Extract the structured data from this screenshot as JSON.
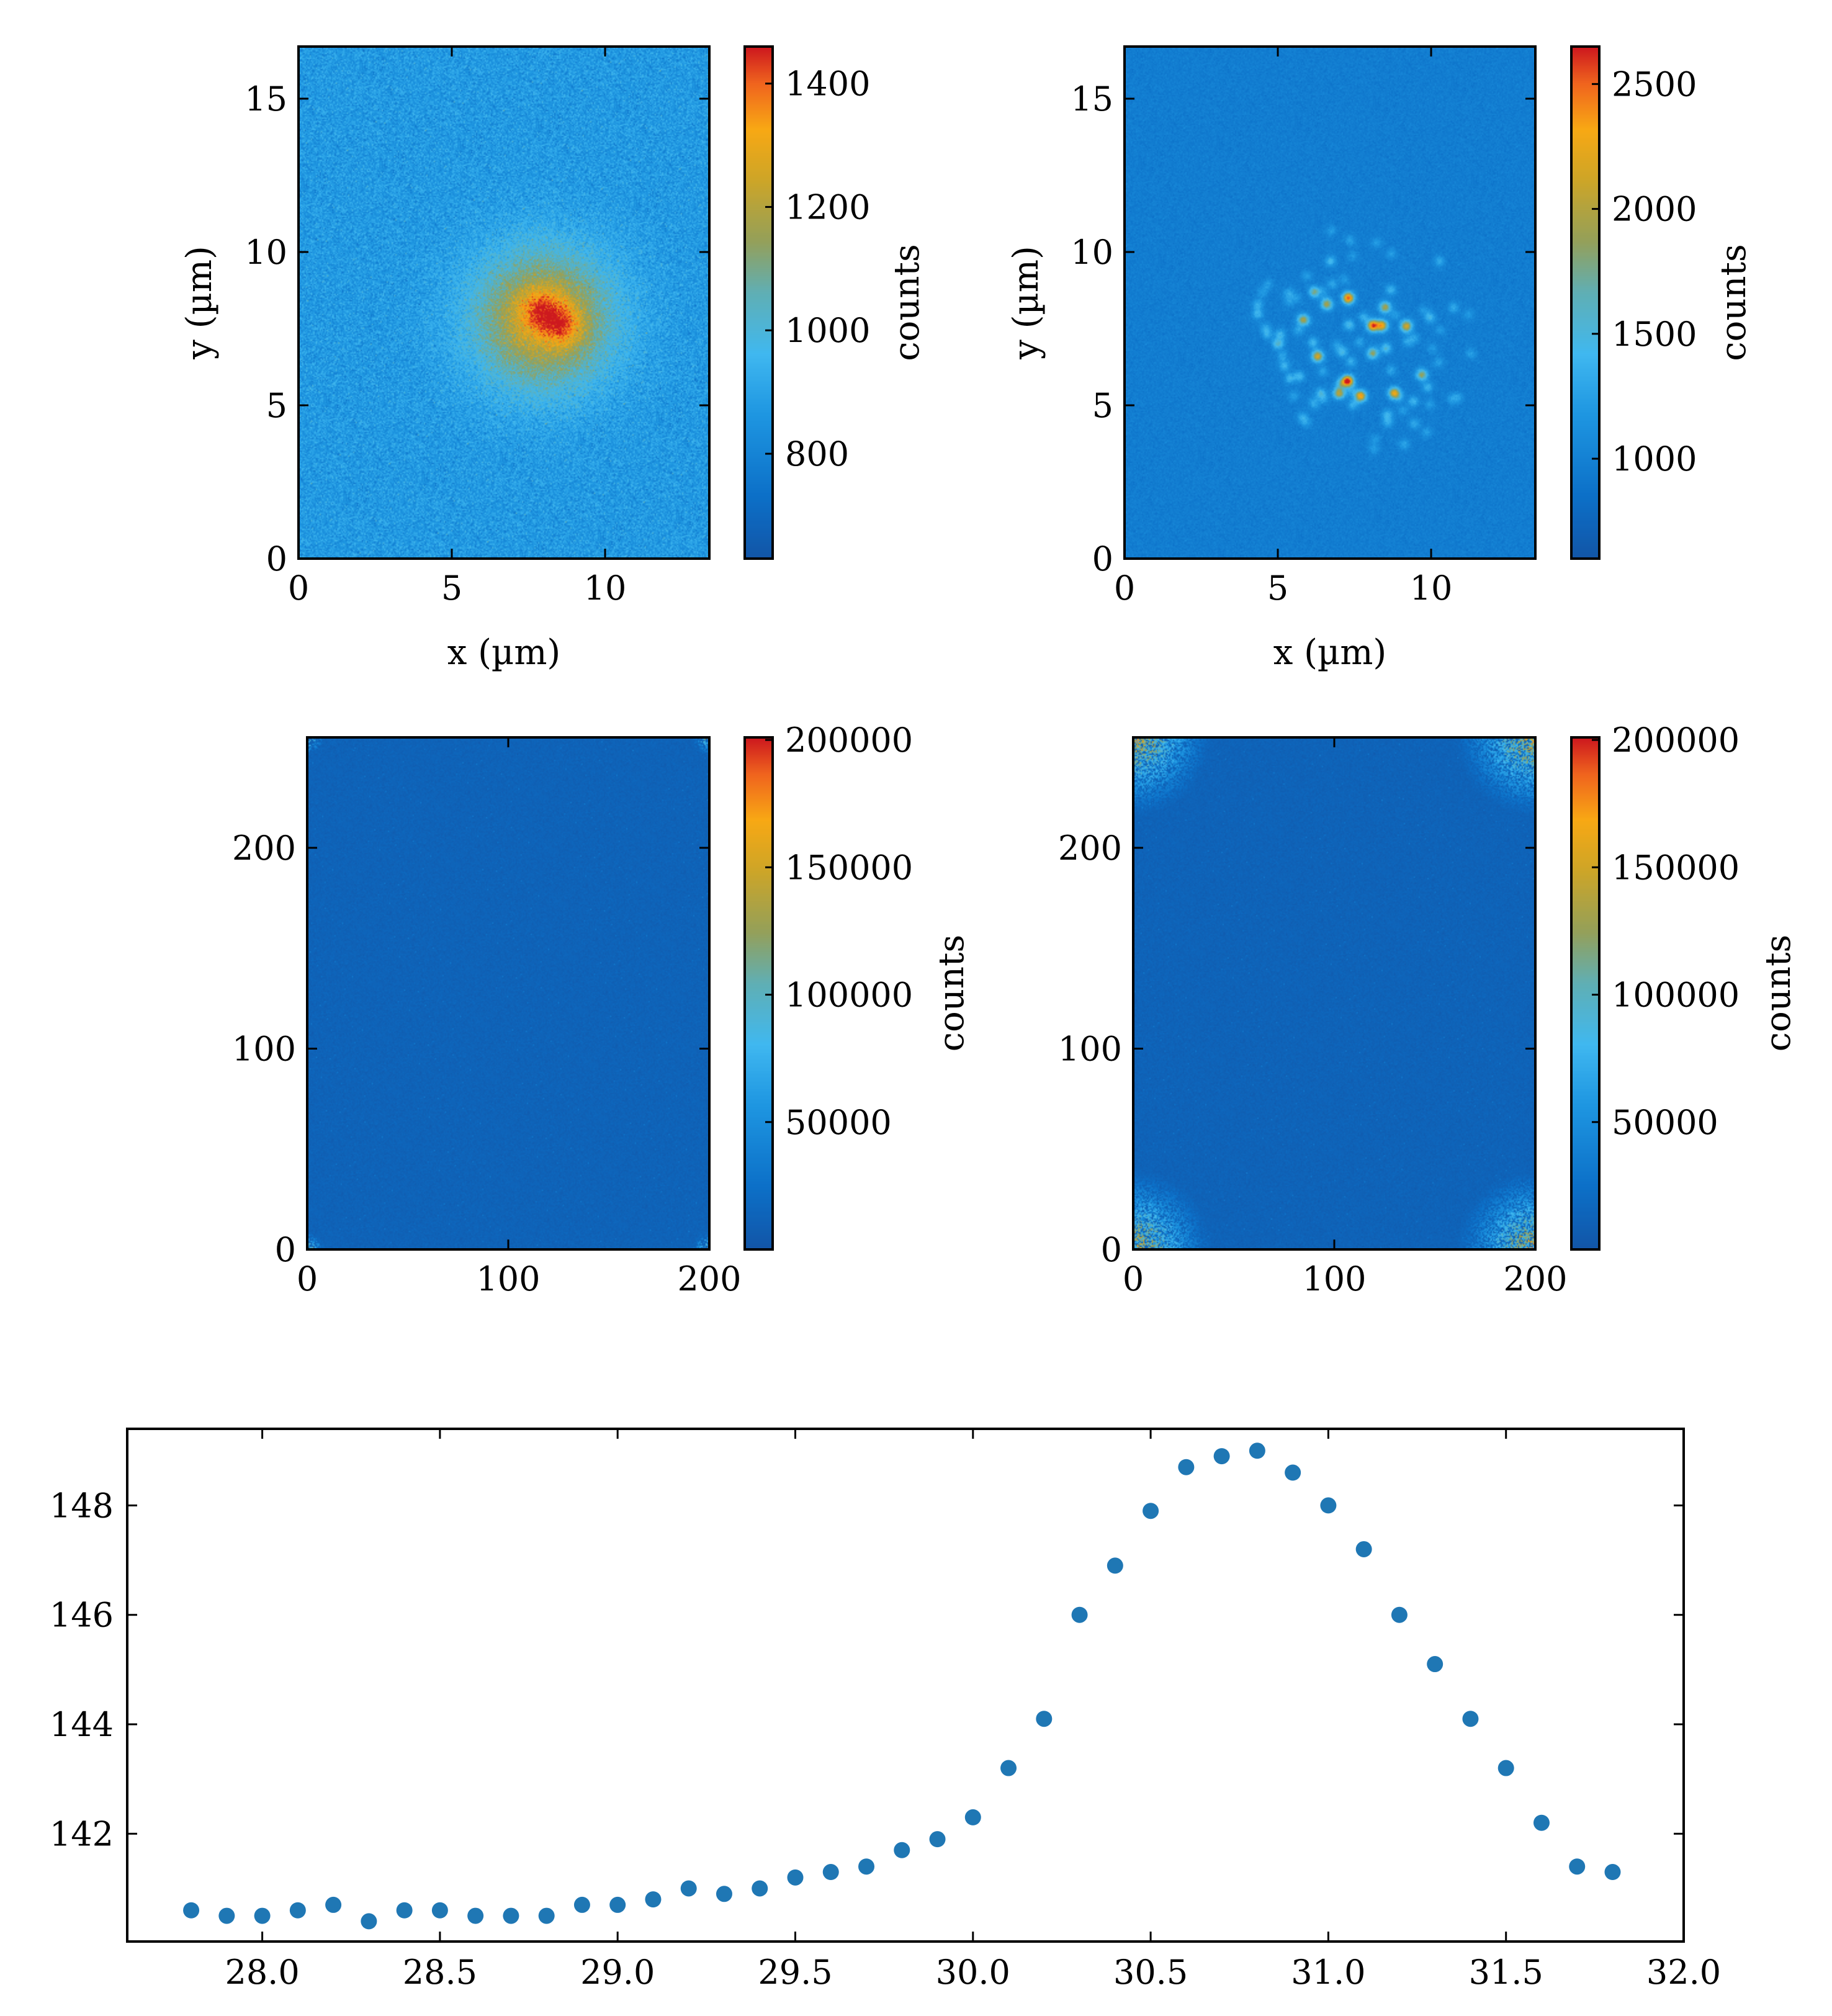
{
  "chart_data": [
    {
      "type": "heatmap",
      "panel": "top-left",
      "xlabel": "x (µm)",
      "ylabel": "y (µm)",
      "xlim": [
        0,
        13.4
      ],
      "ylim": [
        0,
        16.7
      ],
      "xticks": [
        0,
        5,
        10
      ],
      "yticks": [
        0,
        5,
        10,
        15
      ],
      "colorbar": {
        "label": "counts",
        "ticks": [
          800,
          1000,
          1200,
          1400
        ],
        "range": [
          630,
          1460
        ]
      },
      "background_counts": 870,
      "blobs": [
        {
          "x": 8.0,
          "y": 7.8,
          "sigma": 1.6,
          "amp": 380
        },
        {
          "x": 7.9,
          "y": 8.1,
          "sigma": 0.45,
          "amp": 200
        },
        {
          "x": 8.6,
          "y": 7.6,
          "sigma": 0.45,
          "amp": 200
        }
      ],
      "noise": 45
    },
    {
      "type": "heatmap",
      "panel": "top-right",
      "xlabel": "x (µm)",
      "ylabel": "y (µm)",
      "xlim": [
        0,
        13.4
      ],
      "ylim": [
        0,
        16.7
      ],
      "xticks": [
        0,
        5,
        10
      ],
      "yticks": [
        0,
        5,
        10,
        15
      ],
      "colorbar": {
        "label": "counts",
        "ticks": [
          1000,
          1500,
          2000,
          2500
        ],
        "range": [
          600,
          2650
        ]
      },
      "background_counts": 960,
      "blobs": [
        {
          "x": 7.3,
          "y": 8.5,
          "sigma": 0.13,
          "amp": 1600
        },
        {
          "x": 8.1,
          "y": 7.6,
          "sigma": 0.13,
          "amp": 1600
        },
        {
          "x": 8.4,
          "y": 7.6,
          "sigma": 0.13,
          "amp": 1300
        },
        {
          "x": 6.6,
          "y": 8.3,
          "sigma": 0.13,
          "amp": 1000
        },
        {
          "x": 6.3,
          "y": 6.6,
          "sigma": 0.13,
          "amp": 1200
        },
        {
          "x": 7.3,
          "y": 5.8,
          "sigma": 0.13,
          "amp": 1400
        },
        {
          "x": 7.7,
          "y": 5.3,
          "sigma": 0.13,
          "amp": 1400
        },
        {
          "x": 8.8,
          "y": 5.4,
          "sigma": 0.13,
          "amp": 1300
        },
        {
          "x": 7.0,
          "y": 5.4,
          "sigma": 0.13,
          "amp": 1100
        },
        {
          "x": 9.2,
          "y": 7.6,
          "sigma": 0.13,
          "amp": 1000
        },
        {
          "x": 8.1,
          "y": 6.7,
          "sigma": 0.13,
          "amp": 900
        },
        {
          "x": 8.5,
          "y": 8.2,
          "sigma": 0.13,
          "amp": 1000
        },
        {
          "x": 5.8,
          "y": 7.8,
          "sigma": 0.13,
          "amp": 700
        },
        {
          "x": 9.7,
          "y": 6.0,
          "sigma": 0.13,
          "amp": 900
        }
      ],
      "faint_spots": {
        "center_x": 7.8,
        "center_y": 7.2,
        "radius": 3.6,
        "count": 80,
        "amp_range": [
          200,
          650
        ]
      },
      "noise": 40
    },
    {
      "type": "heatmap",
      "panel": "middle-left",
      "xlim": [
        0,
        200
      ],
      "ylim": [
        0,
        255
      ],
      "xticks": [
        0,
        100,
        200
      ],
      "yticks": [
        0,
        100,
        200
      ],
      "colorbar": {
        "label": "counts",
        "ticks": [
          50000,
          100000,
          150000,
          200000
        ],
        "range": [
          0,
          201000
        ]
      },
      "background_counts": 12000,
      "corner_clusters": {
        "radius": 9,
        "amp": 170000,
        "density": 0.4
      },
      "noise": 2500
    },
    {
      "type": "heatmap",
      "panel": "middle-right",
      "xlim": [
        0,
        200
      ],
      "ylim": [
        0,
        255
      ],
      "xticks": [
        0,
        100,
        200
      ],
      "yticks": [
        0,
        100,
        200
      ],
      "colorbar": {
        "label": "counts",
        "ticks": [
          50000,
          100000,
          150000,
          200000
        ],
        "range": [
          0,
          201000
        ]
      },
      "background_counts": 12000,
      "corner_clusters": {
        "radius": 40,
        "amp": 190000,
        "density": 0.7
      },
      "noise": 2500
    },
    {
      "type": "scatter",
      "panel": "bottom",
      "xlim": [
        27.62,
        32.0
      ],
      "ylim": [
        140.03,
        149.4
      ],
      "xticks": [
        28.0,
        28.5,
        29.0,
        29.5,
        30.0,
        30.5,
        31.0,
        31.5,
        32.0
      ],
      "yticks": [
        142,
        144,
        146,
        148
      ],
      "x": [
        27.8,
        27.9,
        28.0,
        28.1,
        28.2,
        28.3,
        28.4,
        28.5,
        28.6,
        28.7,
        28.8,
        28.9,
        29.0,
        29.1,
        29.2,
        29.3,
        29.4,
        29.5,
        29.6,
        29.7,
        29.8,
        29.9,
        30.0,
        30.1,
        30.2,
        30.3,
        30.4,
        30.5,
        30.6,
        30.7,
        30.8,
        30.9,
        31.0,
        31.1,
        31.2,
        31.3,
        31.4,
        31.5,
        31.6,
        31.7,
        31.8
      ],
      "y": [
        140.6,
        140.5,
        140.5,
        140.6,
        140.7,
        140.4,
        140.6,
        140.6,
        140.5,
        140.5,
        140.5,
        140.7,
        140.7,
        140.8,
        141.0,
        140.9,
        141.0,
        141.2,
        141.3,
        141.4,
        141.7,
        141.9,
        142.3,
        143.2,
        144.1,
        146.0,
        146.9,
        147.9,
        148.7,
        148.9,
        149.0,
        148.6,
        148.0,
        147.2,
        146.0,
        145.1,
        144.1,
        143.2,
        142.2,
        141.4,
        141.3
      ],
      "marker_color": "#1f77b4"
    }
  ]
}
